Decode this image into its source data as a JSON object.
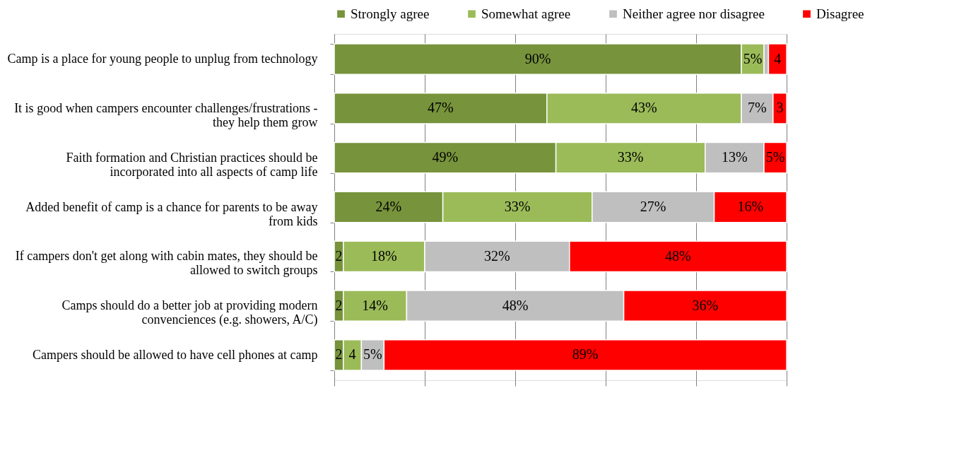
{
  "chart_data": {
    "type": "bar",
    "orientation": "horizontal",
    "stacked": true,
    "categories": [
      "Camp is a place for young people to unplug from technology",
      "It is good when campers encounter challenges/frustrations - they help them grow",
      "Faith formation and Christian practices should be incorporated into all aspects of camp life",
      "Added benefit of camp is a chance for parents to be away from kids",
      "If campers don't get along with cabin mates, they should be allowed to switch groups",
      "Camps should do a better job at providing modern convenciences (e.g. showers, A/C)",
      "Campers should be allowed to have cell phones at camp"
    ],
    "series": [
      {
        "name": "Strongly agree",
        "color": "#77933c",
        "values": [
          90,
          47,
          49,
          24,
          2,
          2,
          2
        ],
        "value_labels": [
          "90%",
          "47%",
          "49%",
          "24%",
          "2",
          "2",
          "2"
        ]
      },
      {
        "name": "Somewhat agree",
        "color": "#9bbb59",
        "values": [
          5,
          43,
          33,
          33,
          18,
          14,
          4
        ],
        "value_labels": [
          "5%",
          "43%",
          "33%",
          "33%",
          "18%",
          "14%",
          "4"
        ]
      },
      {
        "name": "Neither agree nor disagree",
        "color": "#bfbfbf",
        "values": [
          1,
          7,
          13,
          27,
          32,
          48,
          5
        ],
        "value_labels": [
          null,
          "7%",
          "13%",
          "27%",
          "32%",
          "48%",
          "5%"
        ]
      },
      {
        "name": "Disagree",
        "color": "#ff0000",
        "values": [
          4,
          3,
          5,
          16,
          48,
          36,
          89
        ],
        "value_labels": [
          "4",
          "3",
          "5%",
          "16%",
          "48%",
          "36%",
          "89%"
        ]
      }
    ],
    "xlim": [
      0,
      100
    ],
    "xticks": [
      {
        "value": 0,
        "label": null
      },
      {
        "value": 20,
        "label": null
      },
      {
        "value": 40,
        "label": null
      },
      {
        "value": 60,
        "label": null
      },
      {
        "value": 80,
        "label": null
      },
      {
        "value": 100,
        "label": null
      }
    ],
    "grid": "x",
    "legend": "top",
    "tick_labels": "y"
  }
}
